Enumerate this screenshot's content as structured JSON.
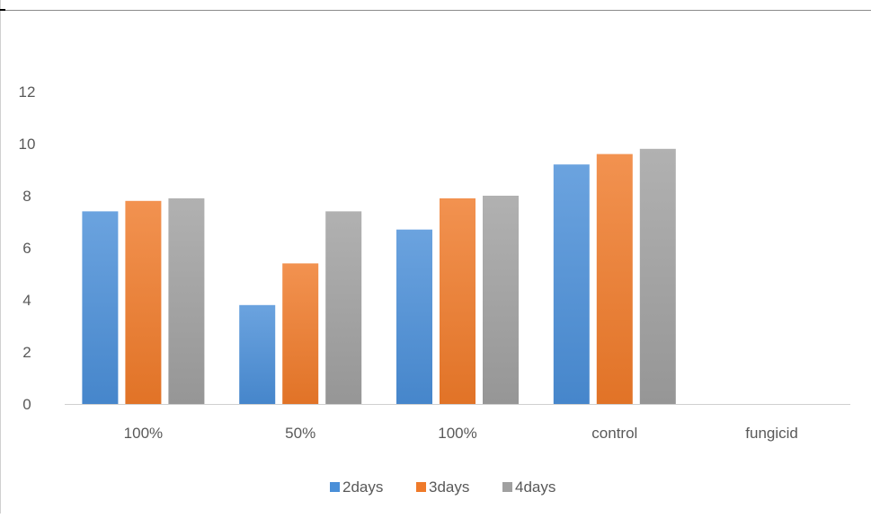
{
  "chart_data": {
    "type": "bar",
    "categories": [
      "100%",
      "50%",
      "100%",
      "control",
      "fungicid"
    ],
    "series": [
      {
        "name": "2days",
        "values": [
          7.4,
          3.8,
          6.7,
          9.2,
          0
        ],
        "color": "#4a8fd8"
      },
      {
        "name": "3days",
        "values": [
          7.8,
          5.4,
          7.9,
          9.6,
          0
        ],
        "color": "#ef7a2a"
      },
      {
        "name": "4days",
        "values": [
          7.9,
          7.4,
          8.0,
          9.8,
          0
        ],
        "color": "#a0a0a0"
      }
    ],
    "yticks": [
      "0",
      "2",
      "4",
      "6",
      "8",
      "10",
      "12"
    ],
    "ylim": [
      0,
      14
    ],
    "grid": false,
    "legend_position": "bottom",
    "title": "",
    "xlabel": "",
    "ylabel": ""
  }
}
